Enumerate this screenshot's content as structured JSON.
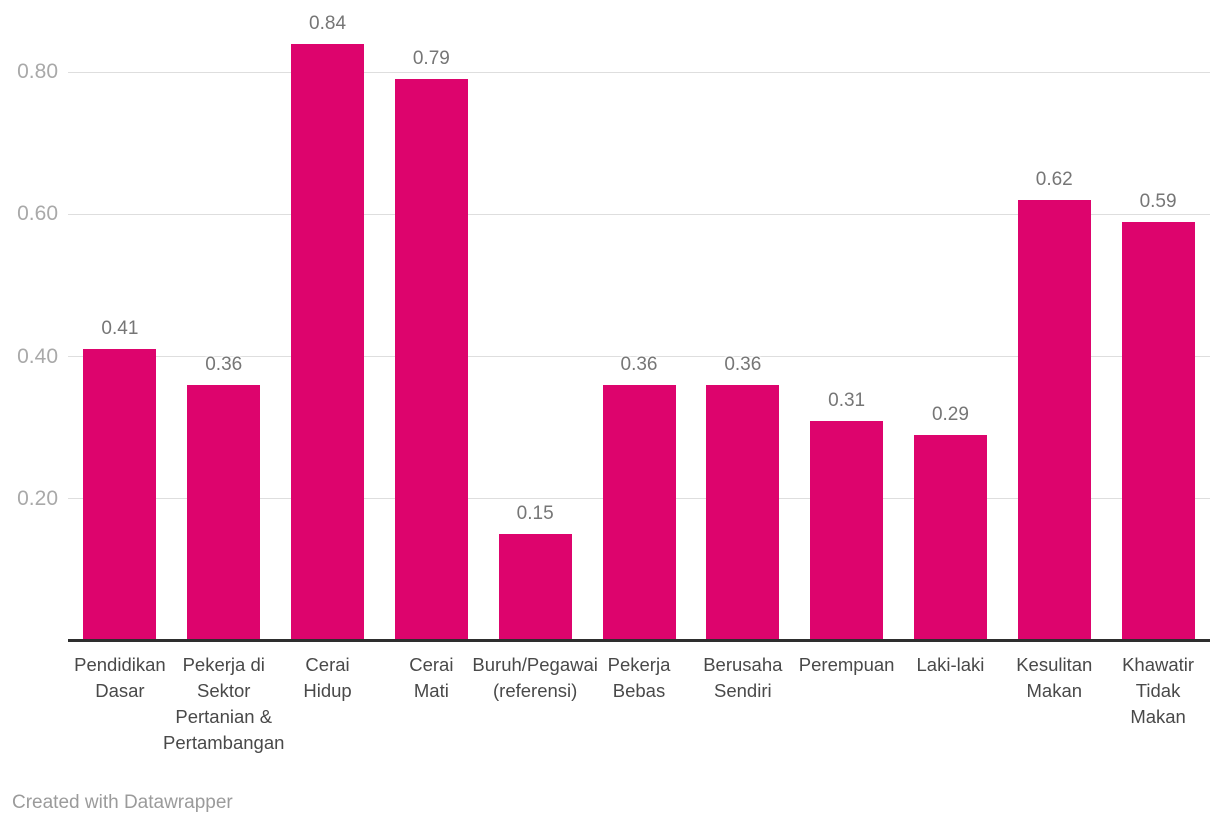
{
  "chart_data": {
    "type": "bar",
    "title": "",
    "xlabel": "",
    "ylabel": "",
    "categories": [
      "Pendidikan Dasar",
      "Pekerja di Sektor Pertanian & Pertambangan",
      "Cerai Hidup",
      "Cerai Mati",
      "Buruh/Pegawai (referensi)",
      "Pekerja Bebas",
      "Berusaha Sendiri",
      "Perempuan",
      "Laki-laki",
      "Kesulitan Makan",
      "Khawatir Tidak Makan"
    ],
    "category_label_lines": [
      [
        "Pendidikan",
        "Dasar"
      ],
      [
        "Pekerja di",
        "Sektor",
        "Pertanian &",
        "Pertambangan"
      ],
      [
        "Cerai",
        "Hidup"
      ],
      [
        "Cerai",
        "Mati"
      ],
      [
        "Buruh/Pegawai",
        "(referensi)"
      ],
      [
        "Pekerja",
        "Bebas"
      ],
      [
        "Berusaha",
        "Sendiri"
      ],
      [
        "Perempuan"
      ],
      [
        "Laki-laki"
      ],
      [
        "Kesulitan",
        "Makan"
      ],
      [
        "Khawatir",
        "Tidak",
        "Makan"
      ]
    ],
    "values": [
      0.41,
      0.36,
      0.84,
      0.79,
      0.15,
      0.36,
      0.36,
      0.31,
      0.29,
      0.62,
      0.59
    ],
    "value_labels": [
      "0.41",
      "0.36",
      "0.84",
      "0.79",
      "0.15",
      "0.36",
      "0.36",
      "0.31",
      "0.29",
      "0.62",
      "0.59"
    ],
    "ylim": [
      0,
      0.9
    ],
    "yticks": [
      0.2,
      0.4,
      0.6,
      0.8
    ],
    "ytick_labels": [
      "0.20",
      "0.40",
      "0.60",
      "0.80"
    ],
    "grid": "horizontal-only",
    "legend": "none",
    "bar_color": "#dd046d"
  },
  "colors": {
    "bar": "#dd046d",
    "gridline": "#dedede",
    "axis_line": "#2e2e2e",
    "ytick_text": "#a9a9a9",
    "value_text": "#767676",
    "category_text": "#494949",
    "footer_text": "#9b9b9b",
    "background": "#ffffff"
  },
  "footer": {
    "credit": "Created with Datawrapper"
  }
}
